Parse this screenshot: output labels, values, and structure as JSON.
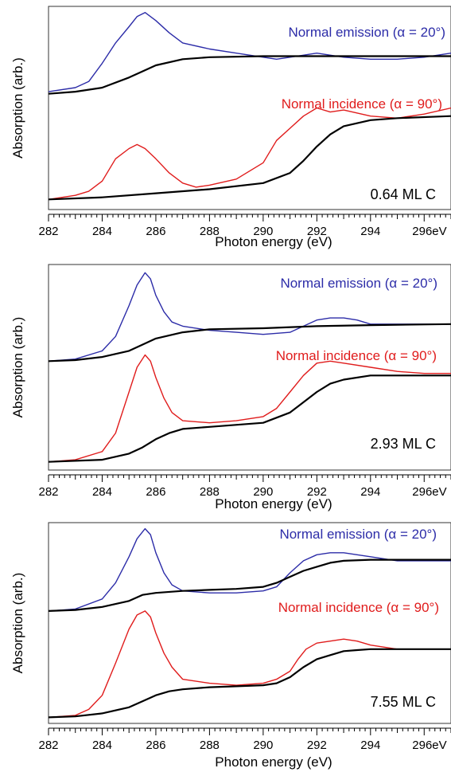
{
  "colors": {
    "emission": "#2c2ca8",
    "incidence": "#e01c1c",
    "background_edge": "#000000",
    "frame": "#333333"
  },
  "chart_data": [
    {
      "type": "line",
      "xlabel": "Photon energy (eV)",
      "ylabel": "Absorption (arb.)",
      "xlim": [
        282,
        297
      ],
      "tick_labels": [
        "282",
        "284",
        "286",
        "288",
        "290",
        "292",
        "294",
        "296eV"
      ],
      "coverage_label": "0.64 ML C",
      "emission_label": "Normal emission (α = 20°)",
      "incidence_label": "Normal incidence (α = 90°)",
      "series": [
        {
          "name": "Normal emission (α = 20°)",
          "color": "#2c2ca8",
          "x": [
            282,
            283,
            283.5,
            284,
            284.5,
            285,
            285.3,
            285.6,
            286,
            286.5,
            287,
            288,
            289,
            290,
            290.5,
            291,
            292,
            293,
            294,
            295,
            296,
            297
          ],
          "y": [
            0.58,
            0.6,
            0.63,
            0.72,
            0.82,
            0.9,
            0.95,
            0.97,
            0.93,
            0.87,
            0.82,
            0.79,
            0.77,
            0.75,
            0.74,
            0.75,
            0.77,
            0.75,
            0.74,
            0.74,
            0.75,
            0.77
          ]
        },
        {
          "name": "",
          "color": "#000000",
          "x": [
            282,
            283,
            284,
            285,
            285.5,
            286,
            287,
            288,
            290,
            292,
            294,
            297
          ],
          "y": [
            0.57,
            0.58,
            0.6,
            0.65,
            0.68,
            0.71,
            0.74,
            0.75,
            0.755,
            0.755,
            0.755,
            0.755
          ]
        },
        {
          "name": "Normal incidence (α = 90°)",
          "color": "#e01c1c",
          "x": [
            282,
            283,
            283.5,
            284,
            284.5,
            285,
            285.3,
            285.6,
            286,
            286.5,
            287,
            287.5,
            288,
            289,
            290,
            290.5,
            291,
            291.5,
            292,
            292.5,
            293,
            294,
            295,
            296,
            297
          ],
          "y": [
            0.05,
            0.07,
            0.09,
            0.14,
            0.25,
            0.3,
            0.32,
            0.3,
            0.25,
            0.18,
            0.13,
            0.11,
            0.12,
            0.15,
            0.23,
            0.34,
            0.4,
            0.46,
            0.5,
            0.48,
            0.49,
            0.46,
            0.45,
            0.47,
            0.5
          ]
        },
        {
          "name": "",
          "color": "#000000",
          "x": [
            282,
            284,
            286,
            288,
            290,
            291,
            291.5,
            292,
            292.5,
            293,
            294,
            295,
            297
          ],
          "y": [
            0.05,
            0.06,
            0.08,
            0.1,
            0.13,
            0.18,
            0.24,
            0.31,
            0.37,
            0.41,
            0.44,
            0.45,
            0.46
          ]
        }
      ]
    },
    {
      "type": "line",
      "xlabel": "Photon energy (eV)",
      "ylabel": "Absorption (arb.)",
      "xlim": [
        282,
        297
      ],
      "tick_labels": [
        "282",
        "284",
        "286",
        "288",
        "290",
        "292",
        "294",
        "296eV"
      ],
      "coverage_label": "2.93 ML C",
      "emission_label": "Normal emission (α = 20°)",
      "incidence_label": "Normal incidence (α = 90°)",
      "series": [
        {
          "name": "Normal emission (α = 20°)",
          "color": "#2c2ca8",
          "x": [
            282,
            283,
            284,
            284.5,
            285,
            285.3,
            285.6,
            285.8,
            286,
            286.3,
            286.6,
            287,
            288,
            289,
            290,
            291,
            291.5,
            292,
            292.5,
            293,
            293.5,
            294,
            295,
            296,
            297
          ],
          "y": [
            0.53,
            0.54,
            0.58,
            0.65,
            0.8,
            0.9,
            0.96,
            0.93,
            0.85,
            0.77,
            0.72,
            0.7,
            0.68,
            0.67,
            0.66,
            0.67,
            0.7,
            0.73,
            0.74,
            0.74,
            0.73,
            0.71,
            0.71,
            0.71,
            0.71
          ]
        },
        {
          "name": "",
          "color": "#000000",
          "x": [
            282,
            283,
            284,
            285,
            285.5,
            286,
            287,
            288,
            290,
            292,
            294,
            297
          ],
          "y": [
            0.53,
            0.535,
            0.55,
            0.58,
            0.61,
            0.64,
            0.67,
            0.685,
            0.69,
            0.7,
            0.705,
            0.71
          ]
        },
        {
          "name": "Normal incidence (α = 90°)",
          "color": "#e01c1c",
          "x": [
            282,
            283,
            284,
            284.5,
            285,
            285.3,
            285.6,
            285.8,
            286,
            286.3,
            286.6,
            287,
            288,
            289,
            290,
            290.5,
            291,
            291.5,
            292,
            292.5,
            293,
            294,
            295,
            296,
            297
          ],
          "y": [
            0.04,
            0.05,
            0.09,
            0.18,
            0.38,
            0.5,
            0.56,
            0.53,
            0.45,
            0.35,
            0.28,
            0.24,
            0.23,
            0.24,
            0.26,
            0.3,
            0.38,
            0.46,
            0.52,
            0.53,
            0.52,
            0.5,
            0.48,
            0.47,
            0.47
          ]
        },
        {
          "name": "",
          "color": "#000000",
          "x": [
            282,
            284,
            285,
            285.5,
            286,
            286.5,
            287,
            288,
            290,
            291,
            291.5,
            292,
            292.5,
            293,
            294,
            295,
            297
          ],
          "y": [
            0.04,
            0.05,
            0.08,
            0.11,
            0.15,
            0.18,
            0.2,
            0.21,
            0.23,
            0.28,
            0.33,
            0.38,
            0.42,
            0.44,
            0.46,
            0.46,
            0.46
          ]
        }
      ]
    },
    {
      "type": "line",
      "xlabel": "Photon energy (eV)",
      "ylabel": "Absorption (arb.)",
      "xlim": [
        282,
        297
      ],
      "tick_labels": [
        "282",
        "284",
        "286",
        "288",
        "290",
        "292",
        "294",
        "296eV"
      ],
      "coverage_label": "7.55 ML C",
      "emission_label": "Normal emission (α = 20°)",
      "incidence_label": "Normal incidence (α = 90°)",
      "series": [
        {
          "name": "Normal emission (α = 20°)",
          "color": "#2c2ca8",
          "x": [
            282,
            283,
            284,
            284.5,
            285,
            285.3,
            285.6,
            285.8,
            286,
            286.3,
            286.6,
            287,
            288,
            289,
            290,
            290.5,
            291,
            291.5,
            292,
            292.5,
            293,
            293.5,
            294,
            295,
            296,
            297
          ],
          "y": [
            0.56,
            0.57,
            0.62,
            0.7,
            0.83,
            0.92,
            0.97,
            0.94,
            0.85,
            0.75,
            0.69,
            0.66,
            0.65,
            0.65,
            0.66,
            0.68,
            0.75,
            0.81,
            0.84,
            0.85,
            0.85,
            0.84,
            0.83,
            0.81,
            0.81,
            0.81
          ]
        },
        {
          "name": "",
          "color": "#000000",
          "x": [
            282,
            283,
            284,
            285,
            285.5,
            286,
            287,
            288,
            289,
            290,
            290.5,
            291,
            291.5,
            292,
            292.5,
            293,
            294,
            295,
            297
          ],
          "y": [
            0.56,
            0.565,
            0.58,
            0.61,
            0.64,
            0.65,
            0.66,
            0.665,
            0.67,
            0.68,
            0.7,
            0.73,
            0.76,
            0.78,
            0.8,
            0.81,
            0.815,
            0.815,
            0.815
          ]
        },
        {
          "name": "Normal incidence (α = 90°)",
          "color": "#e01c1c",
          "x": [
            282,
            283,
            283.5,
            284,
            284.5,
            285,
            285.3,
            285.6,
            285.8,
            286,
            286.3,
            286.6,
            287,
            288,
            289,
            290,
            290.5,
            291,
            291.3,
            291.6,
            292,
            292.5,
            293,
            293.5,
            294,
            295,
            296,
            297
          ],
          "y": [
            0.03,
            0.04,
            0.07,
            0.14,
            0.3,
            0.47,
            0.54,
            0.56,
            0.53,
            0.45,
            0.35,
            0.28,
            0.22,
            0.2,
            0.19,
            0.2,
            0.22,
            0.26,
            0.32,
            0.37,
            0.4,
            0.41,
            0.42,
            0.41,
            0.39,
            0.37,
            0.37,
            0.37
          ]
        },
        {
          "name": "",
          "color": "#000000",
          "x": [
            282,
            283,
            284,
            285,
            285.5,
            286,
            286.5,
            287,
            288,
            290,
            290.5,
            291,
            291.5,
            292,
            292.5,
            293,
            293.5,
            294,
            295,
            297
          ],
          "y": [
            0.03,
            0.035,
            0.05,
            0.08,
            0.11,
            0.14,
            0.16,
            0.17,
            0.18,
            0.19,
            0.2,
            0.23,
            0.28,
            0.32,
            0.34,
            0.36,
            0.365,
            0.37,
            0.37,
            0.37
          ]
        }
      ]
    }
  ]
}
